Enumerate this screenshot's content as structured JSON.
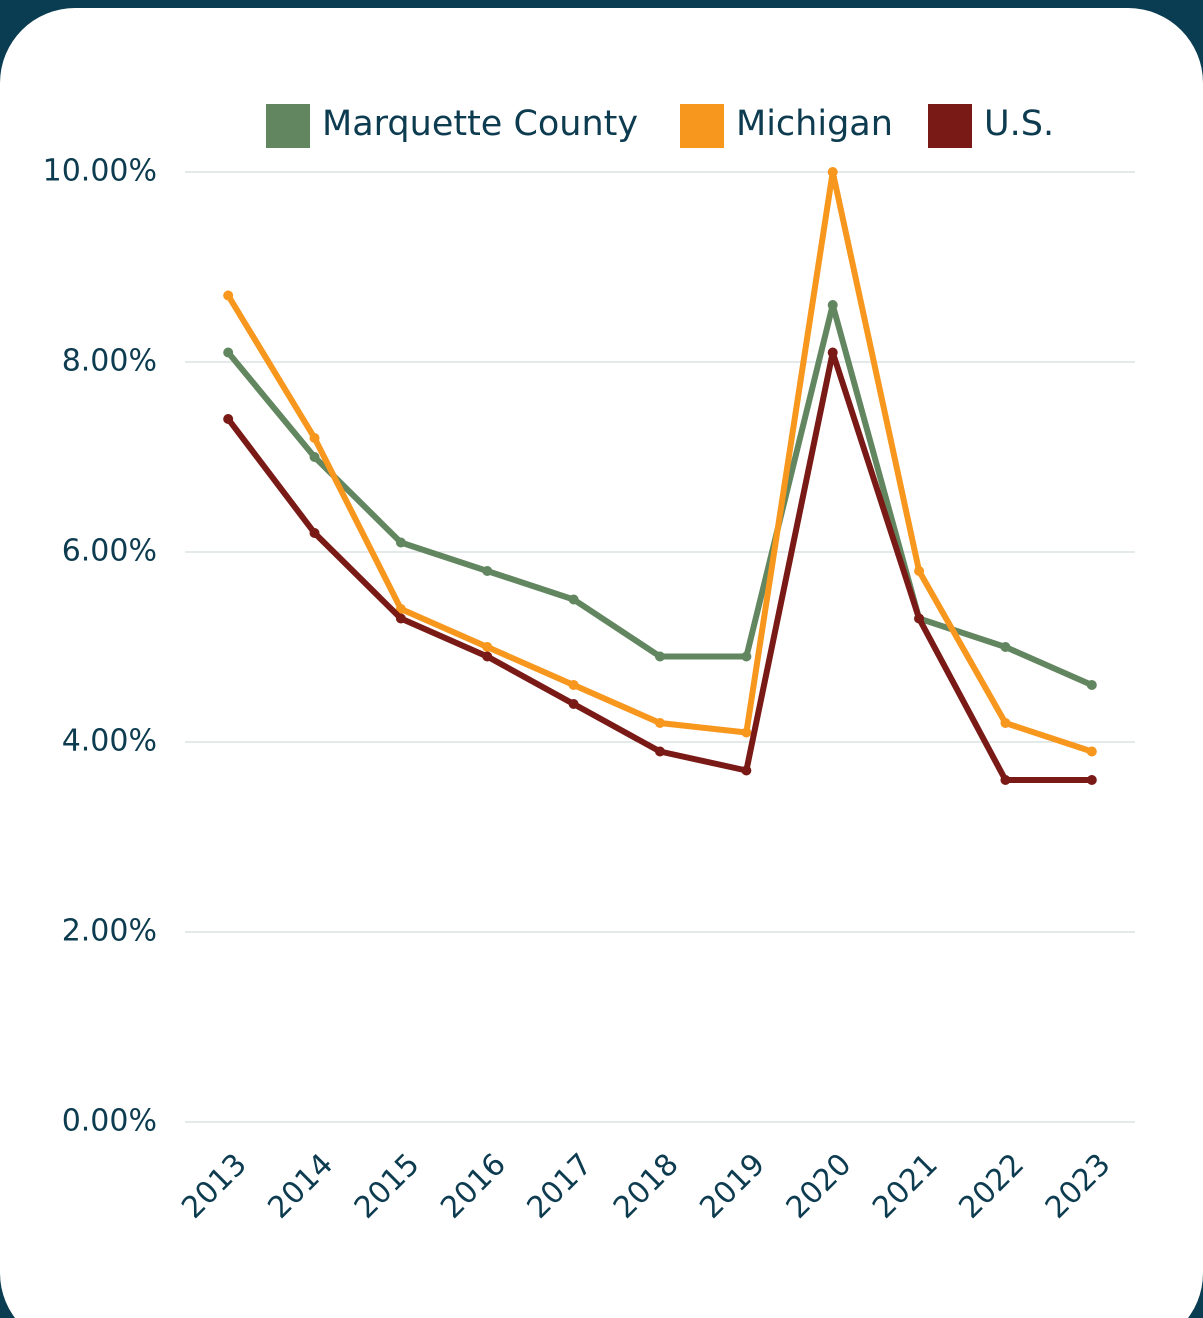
{
  "chart_data": {
    "type": "line",
    "categories": [
      "2013",
      "2014",
      "2015",
      "2016",
      "2017",
      "2018",
      "2019",
      "2020",
      "2021",
      "2022",
      "2023"
    ],
    "series": [
      {
        "name": "Marquette County",
        "color": "#62865f",
        "values": [
          8.1,
          7.0,
          6.1,
          5.8,
          5.5,
          4.9,
          4.9,
          8.6,
          5.3,
          5.0,
          4.6
        ]
      },
      {
        "name": "Michigan",
        "color": "#f7971e",
        "values": [
          8.7,
          7.2,
          5.4,
          5.0,
          4.6,
          4.2,
          4.1,
          10.0,
          5.8,
          4.2,
          3.9
        ]
      },
      {
        "name": "U.S.",
        "color": "#7a1a16",
        "values": [
          7.4,
          6.2,
          5.3,
          4.9,
          4.4,
          3.9,
          3.7,
          8.1,
          5.3,
          3.6,
          3.6
        ]
      }
    ],
    "ylim": [
      0,
      10
    ],
    "yticks": [
      {
        "value": 0,
        "label": "0.00%"
      },
      {
        "value": 2,
        "label": "2.00%"
      },
      {
        "value": 4,
        "label": "4.00%"
      },
      {
        "value": 6,
        "label": "6.00%"
      },
      {
        "value": 8,
        "label": "8.00%"
      },
      {
        "value": 10,
        "label": "10.00%"
      }
    ],
    "grid": true,
    "legend": "top"
  }
}
